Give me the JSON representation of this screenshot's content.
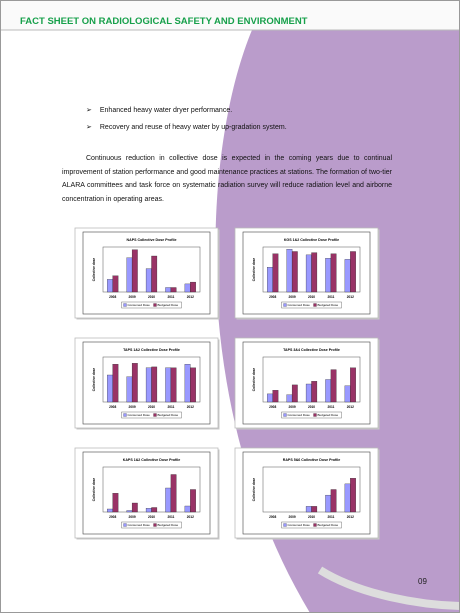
{
  "header": {
    "title": "FACT SHEET ON RADIOLOGICAL SAFETY AND ENVIRONMENT"
  },
  "bullets": [
    "Enhanced heavy water dryer performance.",
    "Recovery and reuse of heavy water by up-gradation system."
  ],
  "paragraph": "Continuous reduction in collective dose is expected in the coming years due to continual improvement of station performance and good maintenance practices at stations. The formation of two-tier ALARA committees and task force on systematic radiation survey will reduce radiation level and airborne concentration in operating areas.",
  "charts": [
    {
      "type": "bar",
      "title": "NAPS Collective Dose Profile",
      "y_label": "Collective dose",
      "categories": [
        "2008",
        "2009",
        "2010",
        "2011",
        "2012"
      ],
      "ylim": [
        0,
        5
      ],
      "series": [
        {
          "name": "Consumed Dose",
          "color": "#9999ff",
          "values": [
            1.4,
            3.8,
            2.6,
            0.5,
            0.9
          ]
        },
        {
          "name": "Budgeted Dose",
          "color": "#993366",
          "values": [
            1.8,
            4.7,
            4.0,
            0.5,
            1.1
          ]
        }
      ]
    },
    {
      "type": "bar",
      "title": "KGS 1&2 Collective Dose Profile",
      "y_label": "Collective dose",
      "categories": [
        "2008",
        "2009",
        "2010",
        "2011",
        "2012"
      ],
      "ylim": [
        0,
        4
      ],
      "series": [
        {
          "name": "Consumed Dose",
          "color": "#9999ff",
          "values": [
            2.2,
            3.8,
            3.3,
            3.0,
            2.9
          ]
        },
        {
          "name": "Budgeted Dose",
          "color": "#993366",
          "values": [
            3.4,
            3.6,
            3.5,
            3.4,
            3.6
          ]
        }
      ]
    },
    {
      "type": "bar",
      "title": "TAPS 1&2 Collective Dose Profile",
      "y_label": "Collective dose",
      "categories": [
        "2008",
        "2009",
        "2010",
        "2011",
        "2012"
      ],
      "ylim": [
        0,
        5
      ],
      "series": [
        {
          "name": "Consumed Dose",
          "color": "#9999ff",
          "values": [
            3.0,
            2.8,
            3.8,
            3.8,
            4.2
          ]
        },
        {
          "name": "Budgeted Dose",
          "color": "#993366",
          "values": [
            4.2,
            4.3,
            3.9,
            3.8,
            3.8
          ]
        }
      ]
    },
    {
      "type": "bar",
      "title": "TAPS 3&4 Collective Dose Profile",
      "y_label": "Collective dose",
      "categories": [
        "2008",
        "2009",
        "2010",
        "2011",
        "2012"
      ],
      "ylim": [
        0,
        5
      ],
      "series": [
        {
          "name": "Consumed Dose",
          "color": "#9999ff",
          "values": [
            0.9,
            0.8,
            2.0,
            2.5,
            1.8
          ]
        },
        {
          "name": "Budgeted Dose",
          "color": "#993366",
          "values": [
            1.3,
            1.9,
            2.3,
            3.6,
            3.8
          ]
        }
      ]
    },
    {
      "type": "bar",
      "title": "KAPS 1&2 Collective Dose Profile",
      "y_label": "Collective dose",
      "categories": [
        "2008",
        "2009",
        "2010",
        "2011",
        "2012"
      ],
      "ylim": [
        0,
        6
      ],
      "series": [
        {
          "name": "Consumed Dose",
          "color": "#9999ff",
          "values": [
            0.4,
            0.2,
            0.5,
            3.2,
            0.8
          ]
        },
        {
          "name": "Budgeted Dose",
          "color": "#993366",
          "values": [
            2.5,
            1.2,
            0.6,
            5.0,
            3.0
          ]
        }
      ]
    },
    {
      "type": "bar",
      "title": "RAPS 5&6 Collective Dose Profile",
      "y_label": "Collective dose",
      "categories": [
        "2008",
        "2009",
        "2010",
        "2011",
        "2012"
      ],
      "ylim": [
        0,
        4
      ],
      "series": [
        {
          "name": "Consumed Dose",
          "color": "#9999ff",
          "values": [
            0,
            0,
            0.5,
            1.5,
            2.5
          ]
        },
        {
          "name": "Budgeted Dose",
          "color": "#993366",
          "values": [
            0,
            0,
            0.5,
            2.0,
            3.0
          ]
        }
      ]
    }
  ],
  "page_number": "09"
}
